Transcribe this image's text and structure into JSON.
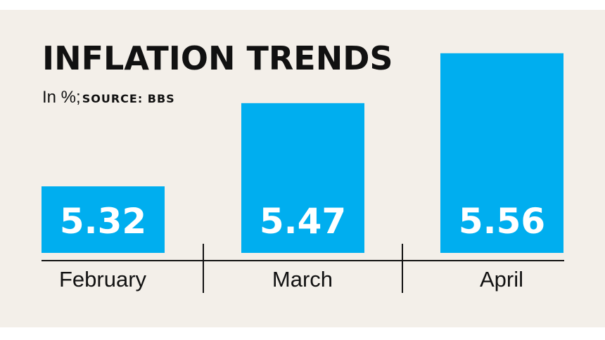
{
  "colors": {
    "background": "#f3efe9",
    "bar": "#00aeef",
    "value_text": "#ffffff",
    "text": "#111111",
    "axis": "#111111"
  },
  "chart_data": {
    "type": "bar",
    "title": "INFLATION TRENDS",
    "subtitle": "In %;",
    "source": "SOURCE: BBS",
    "categories": [
      "February",
      "March",
      "April"
    ],
    "values": [
      5.32,
      5.47,
      5.56
    ],
    "value_labels": [
      "5.32",
      "5.47",
      "5.56"
    ],
    "ylim": [
      5.2,
      5.58
    ],
    "xlabel": "",
    "ylabel": "",
    "grid": false,
    "legend": "none"
  }
}
